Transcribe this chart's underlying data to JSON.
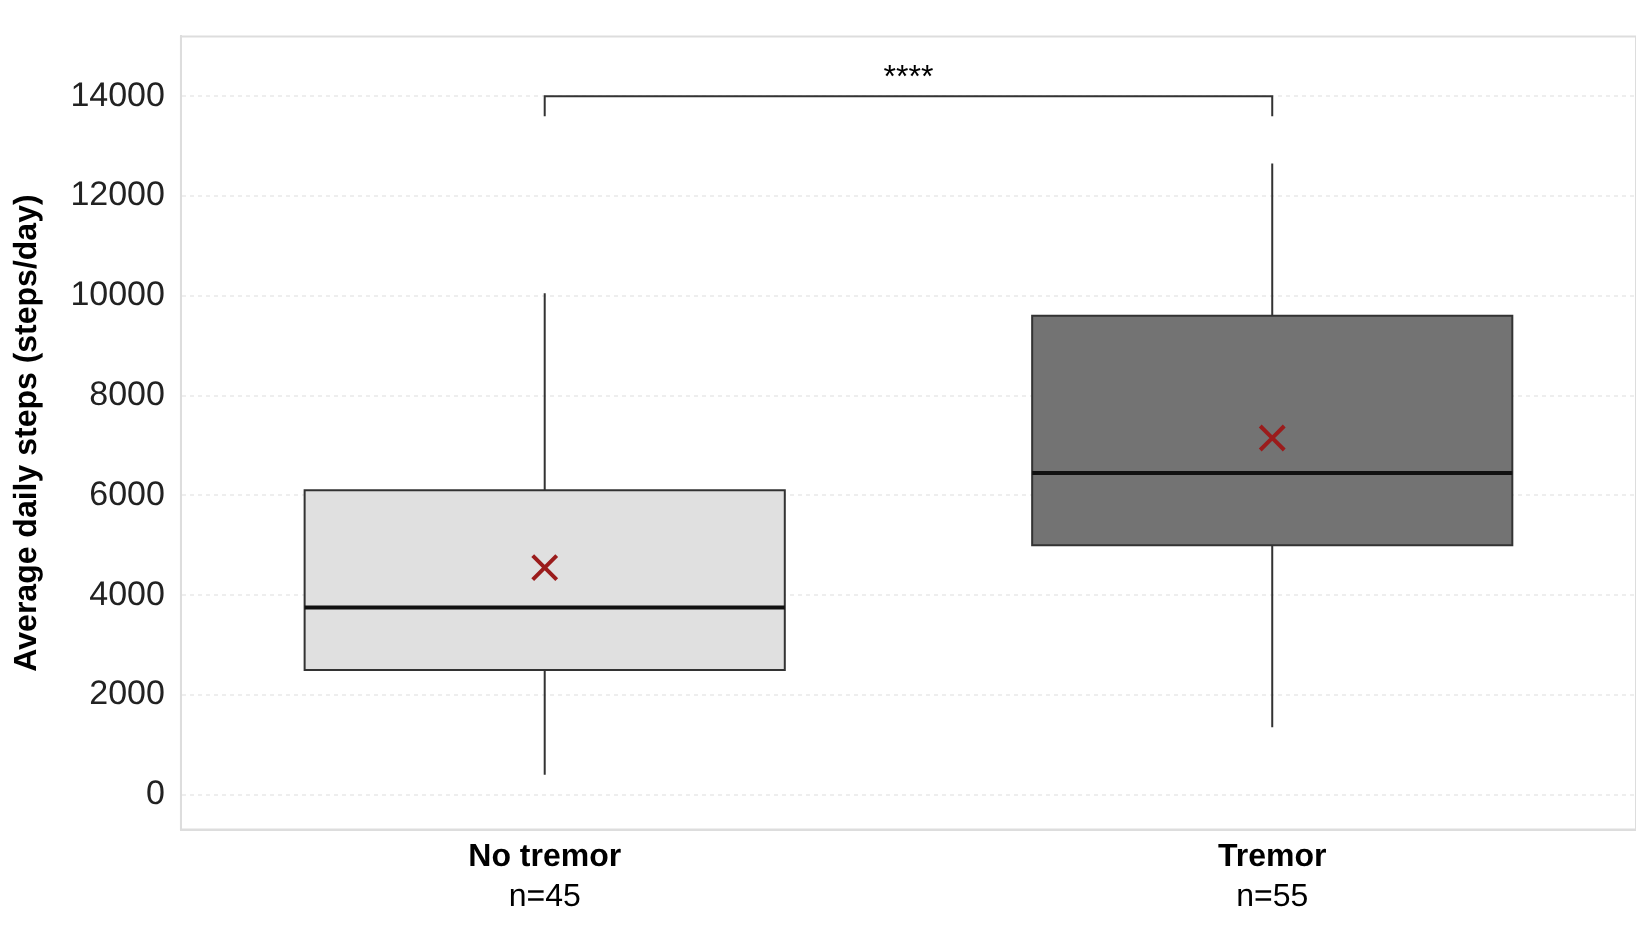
{
  "chart_data": {
    "type": "box",
    "ylabel": "Average daily steps (steps/day)",
    "categories": [
      "No tremor",
      "Tremor"
    ],
    "colors": [
      "#e0e0e0",
      "#737373"
    ],
    "boxes": [
      {
        "low": 400,
        "q1": 2500,
        "median": 3750,
        "q3": 6100,
        "high": 10050,
        "mean": 4550
      },
      {
        "low": 1350,
        "q1": 5000,
        "median": 6450,
        "q3": 9600,
        "high": 12650,
        "mean": 7150
      }
    ],
    "ylim": [
      -700,
      15200
    ],
    "yticks": [
      0,
      2000,
      4000,
      6000,
      8000,
      10000,
      12000,
      14000
    ],
    "grid": "y",
    "marker": "cross",
    "annotations": [
      "n=45",
      "n=55",
      "****"
    ]
  }
}
